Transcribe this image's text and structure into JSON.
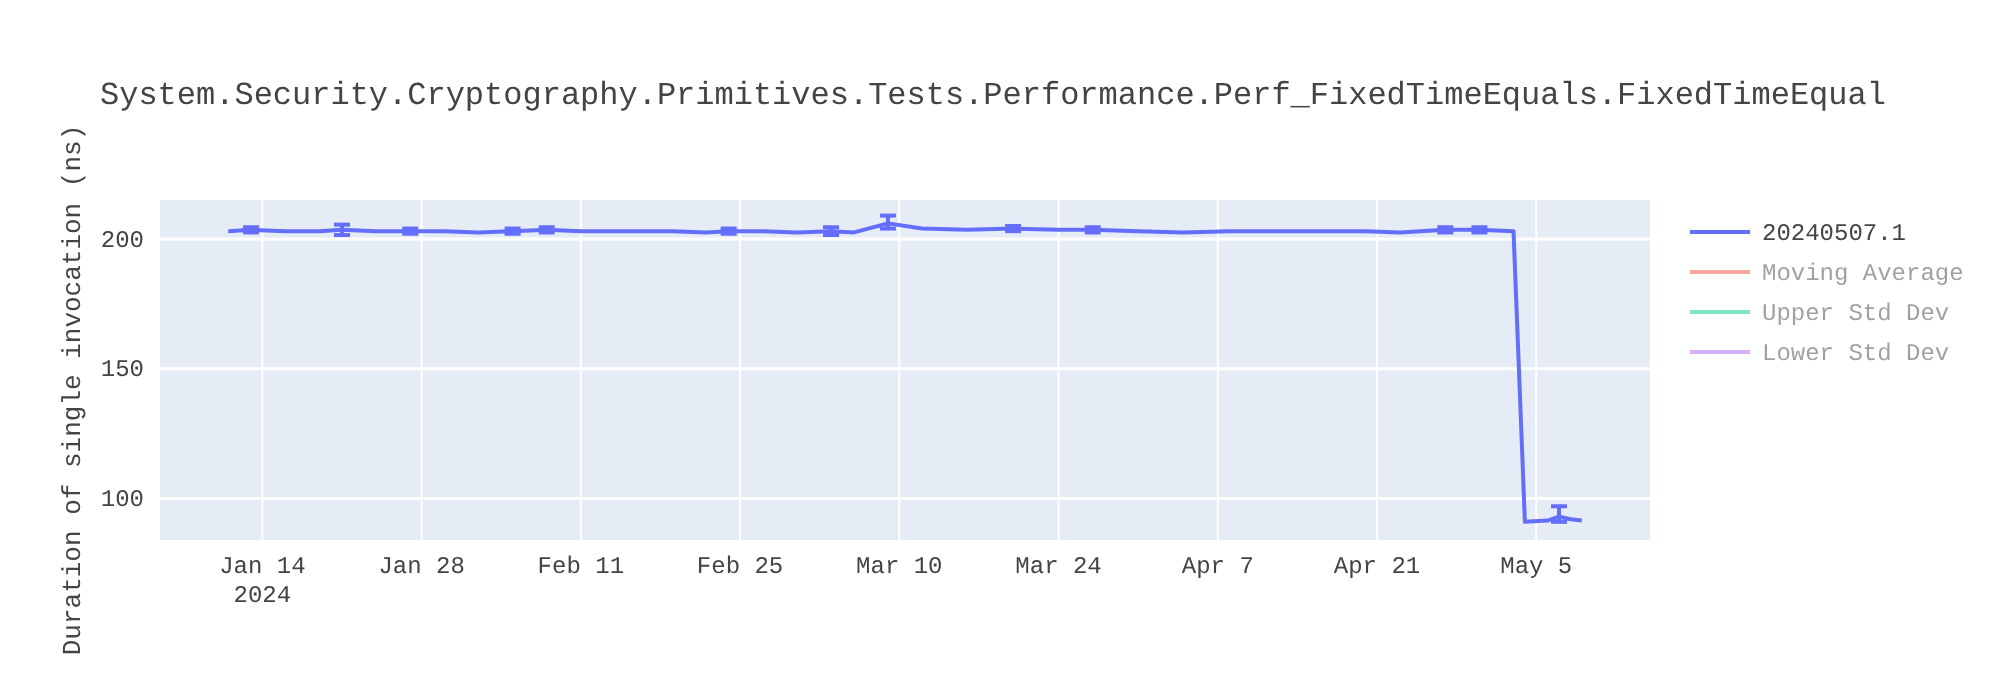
{
  "chart_data": {
    "type": "line",
    "title": "System.Security.Cryptography.Primitives.Tests.Performance.Perf_FixedTimeEquals.FixedTimeEqual",
    "ylabel": "Duration of single invocation (ns)",
    "xlim": [
      "2024-01-05",
      "2024-05-15"
    ],
    "xticks": [
      {
        "value": "2024-01-14",
        "label": "Jan 14\n2024"
      },
      {
        "value": "2024-01-28",
        "label": "Jan 28"
      },
      {
        "value": "2024-02-11",
        "label": "Feb 11"
      },
      {
        "value": "2024-02-25",
        "label": "Feb 25"
      },
      {
        "value": "2024-03-10",
        "label": "Mar 10"
      },
      {
        "value": "2024-03-24",
        "label": "Mar 24"
      },
      {
        "value": "2024-04-07",
        "label": "Apr 7"
      },
      {
        "value": "2024-04-21",
        "label": "Apr 21"
      },
      {
        "value": "2024-05-05",
        "label": "May 5"
      }
    ],
    "ylim": [
      84,
      215
    ],
    "yticks": [
      100,
      150,
      200
    ],
    "grid": true,
    "legend": "top right",
    "marker": "none",
    "line_style": "solid",
    "x": [
      "2024-01-11",
      "2024-01-13",
      "2024-01-16",
      "2024-01-19",
      "2024-01-21",
      "2024-01-24",
      "2024-01-27",
      "2024-01-30",
      "2024-02-02",
      "2024-02-05",
      "2024-02-08",
      "2024-02-11",
      "2024-02-15",
      "2024-02-19",
      "2024-02-22",
      "2024-02-24",
      "2024-02-27",
      "2024-03-01",
      "2024-03-04",
      "2024-03-06",
      "2024-03-09",
      "2024-03-12",
      "2024-03-16",
      "2024-03-20",
      "2024-03-24",
      "2024-03-27",
      "2024-03-31",
      "2024-04-04",
      "2024-04-08",
      "2024-04-12",
      "2024-04-16",
      "2024-04-20",
      "2024-04-23",
      "2024-04-27",
      "2024-04-30",
      "2024-05-03",
      "2024-05-04",
      "2024-05-06",
      "2024-05-07",
      "2024-05-08",
      "2024-05-09"
    ],
    "series": [
      {
        "name": "20240507.1",
        "color": "#636efa",
        "values": [
          203,
          203.5,
          203,
          203,
          203.5,
          203,
          203,
          203,
          202.5,
          203,
          203.5,
          203,
          203,
          203,
          202.5,
          203,
          203,
          202.5,
          203,
          202.5,
          206,
          204,
          203.5,
          204,
          203.5,
          203.5,
          203,
          202.5,
          203,
          203,
          203,
          203,
          202.5,
          203.5,
          203.5,
          203,
          91,
          91.5,
          93,
          92,
          91.5
        ],
        "errors": [
          null,
          1,
          null,
          null,
          2,
          null,
          1,
          null,
          null,
          1,
          1,
          null,
          null,
          null,
          null,
          1,
          null,
          null,
          1.5,
          null,
          [
            204,
            209
          ],
          null,
          null,
          1,
          null,
          1,
          null,
          null,
          null,
          null,
          null,
          null,
          null,
          1,
          1,
          null,
          null,
          null,
          [
            91,
            97
          ],
          null,
          null
        ]
      },
      {
        "name": "Moving Average",
        "color": "#ef553b",
        "values": [
          null,
          null,
          null,
          null,
          null,
          null,
          null,
          null,
          null,
          null,
          null,
          null,
          null,
          null,
          null,
          null,
          null,
          null,
          null,
          null,
          null,
          null,
          null,
          null,
          null,
          null,
          null,
          null,
          null,
          null,
          null,
          null,
          null,
          null,
          null,
          null,
          null,
          null,
          null,
          null,
          null
        ]
      },
      {
        "name": "Upper Std Dev",
        "color": "#00cc96",
        "values": [
          null,
          null,
          null,
          null,
          null,
          null,
          null,
          null,
          null,
          null,
          null,
          null,
          null,
          null,
          null,
          null,
          null,
          null,
          null,
          null,
          null,
          null,
          null,
          null,
          null,
          null,
          null,
          null,
          null,
          null,
          null,
          null,
          null,
          null,
          null,
          null,
          null,
          null,
          null,
          null,
          null
        ]
      },
      {
        "name": "Lower Std Dev",
        "color": "#ab63fa",
        "values": [
          null,
          null,
          null,
          null,
          null,
          null,
          null,
          null,
          null,
          null,
          null,
          null,
          null,
          null,
          null,
          null,
          null,
          null,
          null,
          null,
          null,
          null,
          null,
          null,
          null,
          null,
          null,
          null,
          null,
          null,
          null,
          null,
          null,
          null,
          null,
          null,
          null,
          null,
          null,
          null,
          null
        ]
      }
    ]
  }
}
